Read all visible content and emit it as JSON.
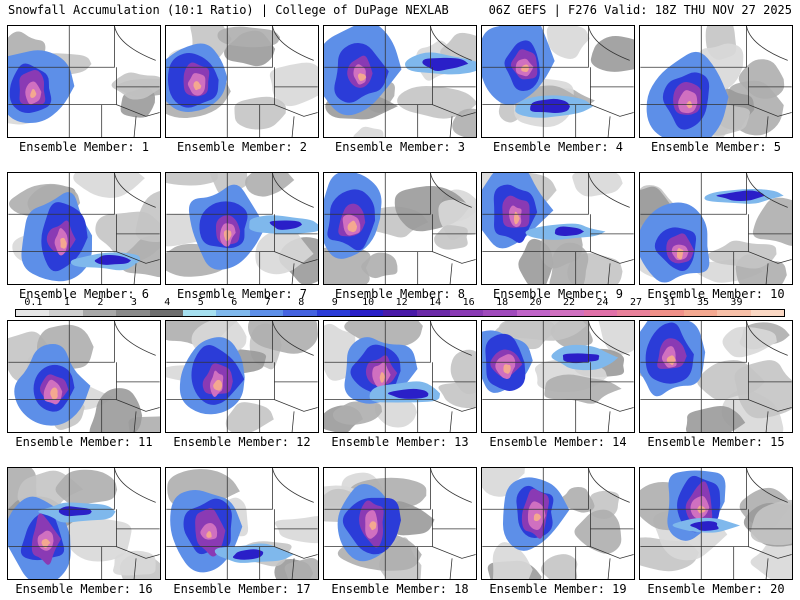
{
  "header": {
    "title": "Snowfall Accumulation (10:1 Ratio) | College of DuPage NEXLAB",
    "run_info": "06Z GEFS | F276 Valid: 18Z THU NOV 27 2025"
  },
  "colorbar": {
    "labels": [
      "0.1",
      "1",
      "2",
      "3",
      "4",
      "5",
      "6",
      "7",
      "8",
      "9",
      "10",
      "12",
      "14",
      "16",
      "18",
      "20",
      "22",
      "24",
      "27",
      "31",
      "35",
      "39"
    ],
    "colors": [
      "#e6e6e6",
      "#cfcfcf",
      "#a8a8a8",
      "#8a8a8a",
      "#6e6e6e",
      "#a6e0f0",
      "#7fb8ec",
      "#5d8fe8",
      "#4563e0",
      "#2b3cd8",
      "#2a1fc8",
      "#4a1aa8",
      "#6c2aa8",
      "#8a3ab4",
      "#a04abc",
      "#c064c8",
      "#d070c0",
      "#e070a8",
      "#e8809a",
      "#f09088",
      "#f4a890",
      "#f8c0a8",
      "#fbd8c4"
    ]
  },
  "members": [
    {
      "label": "Ensemble Member: 1"
    },
    {
      "label": "Ensemble Member: 2"
    },
    {
      "label": "Ensemble Member: 3"
    },
    {
      "label": "Ensemble Member: 4"
    },
    {
      "label": "Ensemble Member: 5"
    },
    {
      "label": "Ensemble Member: 6"
    },
    {
      "label": "Ensemble Member: 7"
    },
    {
      "label": "Ensemble Member: 8"
    },
    {
      "label": "Ensemble Member: 9"
    },
    {
      "label": "Ensemble Member: 10"
    },
    {
      "label": "Ensemble Member: 11"
    },
    {
      "label": "Ensemble Member: 12"
    },
    {
      "label": "Ensemble Member: 13"
    },
    {
      "label": "Ensemble Member: 14"
    },
    {
      "label": "Ensemble Member: 15"
    },
    {
      "label": "Ensemble Member: 16"
    },
    {
      "label": "Ensemble Member: 17"
    },
    {
      "label": "Ensemble Member: 18"
    },
    {
      "label": "Ensemble Member: 19"
    },
    {
      "label": "Ensemble Member: 20"
    }
  ]
}
